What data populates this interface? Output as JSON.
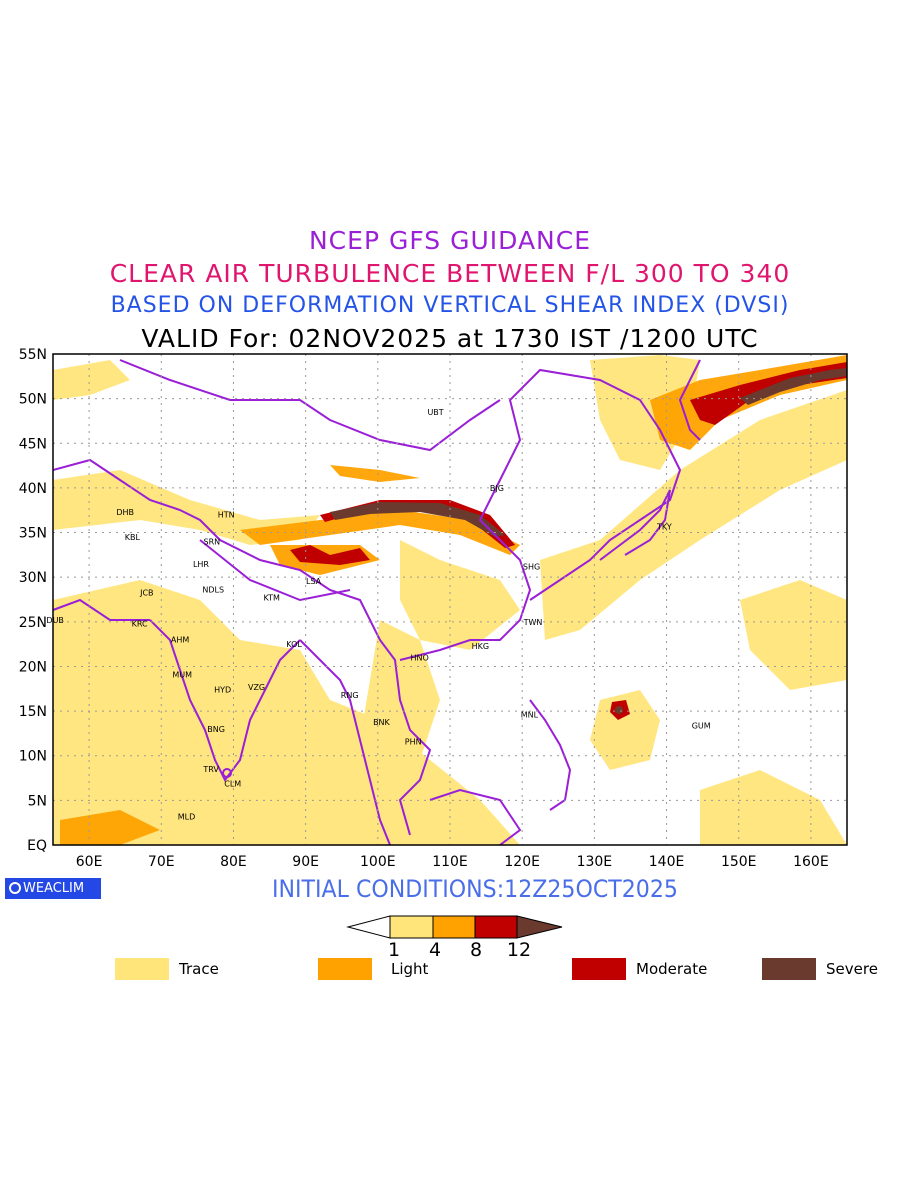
{
  "titles": {
    "line1": "NCEP GFS GUIDANCE",
    "line2": "CLEAR AIR TURBULENCE BETWEEN F/L 300 TO 340",
    "line3": "BASED ON DEFORMATION VERTICAL SHEAR INDEX (DVSI)",
    "line4": "VALID For: 02NOV2025 at 1730 IST /1200 UTC"
  },
  "map": {
    "lat_labels": [
      "55N",
      "50N",
      "45N",
      "40N",
      "35N",
      "30N",
      "25N",
      "20N",
      "15N",
      "10N",
      "5N",
      "EQ"
    ],
    "lon_labels": [
      "60E",
      "70E",
      "80E",
      "90E",
      "100E",
      "110E",
      "120E",
      "130E",
      "140E",
      "150E",
      "160E"
    ],
    "lon_range": [
      55,
      165
    ],
    "lat_range": [
      0,
      55
    ],
    "grid": true,
    "stations": [
      {
        "code": "UBT",
        "lon": 108,
        "lat": 48.5
      },
      {
        "code": "BJG",
        "lon": 116.5,
        "lat": 40
      },
      {
        "code": "DHB",
        "lon": 65,
        "lat": 37.3
      },
      {
        "code": "HTN",
        "lon": 79,
        "lat": 37
      },
      {
        "code": "KBL",
        "lon": 66,
        "lat": 34.5
      },
      {
        "code": "SRN",
        "lon": 77,
        "lat": 34
      },
      {
        "code": "LHR",
        "lon": 75.5,
        "lat": 31.5
      },
      {
        "code": "TKY",
        "lon": 139.7,
        "lat": 35.7
      },
      {
        "code": "SHG",
        "lon": 121.3,
        "lat": 31.2
      },
      {
        "code": "LSA",
        "lon": 91.1,
        "lat": 29.6
      },
      {
        "code": "JCB",
        "lon": 68,
        "lat": 28.3
      },
      {
        "code": "NDLS",
        "lon": 77.2,
        "lat": 28.6
      },
      {
        "code": "KTM",
        "lon": 85.3,
        "lat": 27.7
      },
      {
        "code": "DUB",
        "lon": 55.3,
        "lat": 25.2
      },
      {
        "code": "TWN",
        "lon": 121.5,
        "lat": 25
      },
      {
        "code": "KRC",
        "lon": 67,
        "lat": 24.8
      },
      {
        "code": "AHM",
        "lon": 72.6,
        "lat": 23
      },
      {
        "code": "KOL",
        "lon": 88.4,
        "lat": 22.5
      },
      {
        "code": "HKG",
        "lon": 114.2,
        "lat": 22.3
      },
      {
        "code": "HNO",
        "lon": 105.8,
        "lat": 21
      },
      {
        "code": "MUM",
        "lon": 72.9,
        "lat": 19.1
      },
      {
        "code": "HYD",
        "lon": 78.5,
        "lat": 17.4
      },
      {
        "code": "VZG",
        "lon": 83.2,
        "lat": 17.7
      },
      {
        "code": "RNG",
        "lon": 96.1,
        "lat": 16.8
      },
      {
        "code": "MNL",
        "lon": 121,
        "lat": 14.6
      },
      {
        "code": "BNK",
        "lon": 100.5,
        "lat": 13.8
      },
      {
        "code": "GUM",
        "lon": 144.8,
        "lat": 13.4
      },
      {
        "code": "BNG",
        "lon": 77.6,
        "lat": 13
      },
      {
        "code": "PHN",
        "lon": 104.9,
        "lat": 11.6
      },
      {
        "code": "TRV",
        "lon": 76.9,
        "lat": 8.5
      },
      {
        "code": "CLM",
        "lon": 79.9,
        "lat": 6.9
      },
      {
        "code": "MLD",
        "lon": 73.5,
        "lat": 3.2
      }
    ]
  },
  "colorbar": {
    "ticks": [
      "1",
      "4",
      "8",
      "12"
    ],
    "colors": [
      "#ffe57a",
      "#ffa200",
      "#c00000",
      "#6b3a2e"
    ]
  },
  "legend": [
    {
      "label": "Trace",
      "color": "#ffe57a"
    },
    {
      "label": "Light",
      "color": "#ffa200"
    },
    {
      "label": "Moderate",
      "color": "#c00000"
    },
    {
      "label": "Severe",
      "color": "#6b3a2e"
    }
  ],
  "initial_conditions": "INITIAL CONDITIONS:12Z25OCT2025",
  "logo_text": "WEACLIM"
}
